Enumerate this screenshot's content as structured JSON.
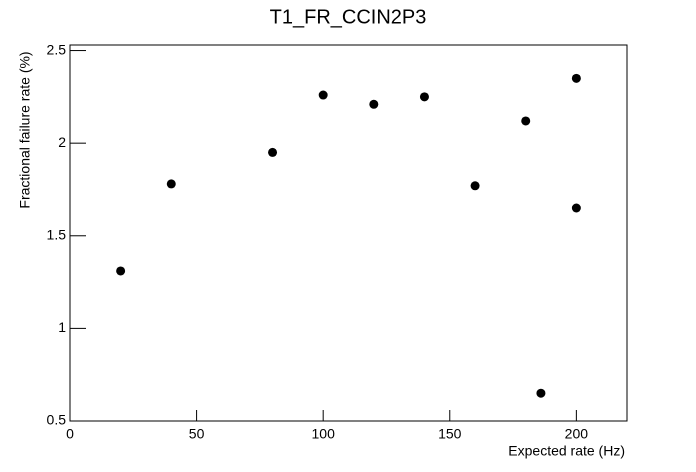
{
  "chart_data": {
    "type": "scatter",
    "title": "T1_FR_CCIN2P3",
    "x_label": "Expected rate (Hz)",
    "y_label": "Fractional failure rate (%)",
    "x": [
      20,
      40,
      80,
      100,
      120,
      140,
      160,
      180,
      186,
      200,
      200
    ],
    "values": [
      1.31,
      1.78,
      1.95,
      2.26,
      2.21,
      2.25,
      1.77,
      2.12,
      0.65,
      2.35,
      1.65
    ],
    "color": "#000000",
    "xlim": [
      0,
      220
    ],
    "xticks": [
      0,
      50,
      100,
      150,
      200
    ],
    "ylim": [
      0.5,
      2.53
    ],
    "yticks": [
      0.5,
      1,
      1.5,
      2,
      2.5
    ]
  }
}
